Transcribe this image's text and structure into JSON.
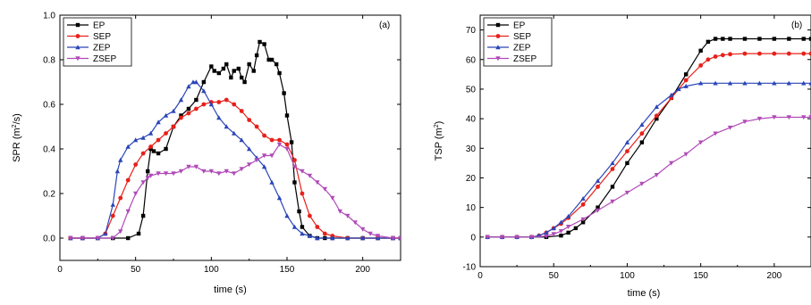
{
  "chart_data": [
    {
      "type": "line",
      "panel_label": "(a)",
      "xlabel": "time (s)",
      "ylabel": "SPR (m²/s)",
      "ylabel_parts": {
        "main": "SPR (m",
        "sup": "2",
        "tail": "/s)"
      },
      "xlim": [
        0,
        225
      ],
      "ylim": [
        -0.1,
        1.0
      ],
      "xticks": [
        0,
        50,
        100,
        150,
        200
      ],
      "yticks": [
        0.0,
        0.2,
        0.4,
        0.6,
        0.8,
        1.0
      ],
      "ytick_labels": [
        "0.0",
        "0.2",
        "0.4",
        "0.6",
        "0.8",
        "1.0"
      ],
      "legend_position": "top-left",
      "series": [
        {
          "name": "EP",
          "color": "#000000",
          "marker": "square",
          "x": [
            7,
            15,
            25,
            35,
            45,
            52,
            55,
            58,
            60,
            62,
            65,
            70,
            75,
            80,
            85,
            90,
            95,
            100,
            102,
            105,
            108,
            110,
            113,
            115,
            118,
            120,
            122,
            125,
            128,
            130,
            132,
            135,
            138,
            140,
            143,
            145,
            148,
            150,
            153,
            155,
            158,
            160,
            165,
            170,
            175,
            180,
            190,
            200,
            210,
            220,
            225
          ],
          "y": [
            0,
            0,
            0,
            0,
            0,
            0.02,
            0.1,
            0.3,
            0.4,
            0.39,
            0.38,
            0.4,
            0.5,
            0.55,
            0.58,
            0.62,
            0.7,
            0.77,
            0.75,
            0.74,
            0.76,
            0.78,
            0.72,
            0.75,
            0.76,
            0.72,
            0.7,
            0.78,
            0.75,
            0.82,
            0.88,
            0.87,
            0.8,
            0.8,
            0.78,
            0.74,
            0.65,
            0.55,
            0.43,
            0.25,
            0.12,
            0.05,
            0.01,
            0,
            0,
            0,
            0,
            0,
            0,
            0,
            0
          ]
        },
        {
          "name": "SEP",
          "color": "#e8201a",
          "marker": "circle",
          "x": [
            7,
            15,
            25,
            30,
            35,
            40,
            45,
            50,
            55,
            60,
            65,
            70,
            75,
            80,
            85,
            90,
            95,
            100,
            105,
            110,
            115,
            120,
            125,
            130,
            135,
            140,
            145,
            150,
            155,
            160,
            165,
            170,
            175,
            180,
            190,
            200,
            210,
            220,
            225
          ],
          "y": [
            0,
            0,
            0,
            0.02,
            0.1,
            0.18,
            0.26,
            0.33,
            0.38,
            0.41,
            0.44,
            0.47,
            0.5,
            0.54,
            0.56,
            0.58,
            0.6,
            0.61,
            0.61,
            0.62,
            0.6,
            0.57,
            0.53,
            0.5,
            0.46,
            0.44,
            0.44,
            0.42,
            0.35,
            0.2,
            0.1,
            0.05,
            0.02,
            0.01,
            0,
            0,
            0,
            0,
            0
          ]
        },
        {
          "name": "ZEP",
          "color": "#2a45b8",
          "marker": "triangle",
          "x": [
            7,
            15,
            25,
            30,
            35,
            38,
            40,
            45,
            50,
            55,
            60,
            65,
            70,
            75,
            80,
            85,
            88,
            90,
            95,
            100,
            105,
            110,
            115,
            120,
            125,
            130,
            135,
            140,
            145,
            150,
            155,
            160,
            165,
            170,
            180,
            190,
            200,
            210,
            220,
            225
          ],
          "y": [
            0,
            0,
            0,
            0.02,
            0.15,
            0.3,
            0.35,
            0.41,
            0.44,
            0.45,
            0.47,
            0.52,
            0.55,
            0.57,
            0.62,
            0.68,
            0.7,
            0.7,
            0.66,
            0.6,
            0.54,
            0.5,
            0.47,
            0.44,
            0.4,
            0.36,
            0.32,
            0.25,
            0.18,
            0.1,
            0.05,
            0.02,
            0.01,
            0,
            0,
            0,
            0,
            0,
            0,
            0
          ]
        },
        {
          "name": "ZSEP",
          "color": "#b04ab8",
          "marker": "triangle-down",
          "x": [
            7,
            15,
            25,
            35,
            40,
            45,
            50,
            55,
            58,
            60,
            65,
            70,
            75,
            80,
            85,
            90,
            95,
            100,
            105,
            110,
            115,
            120,
            125,
            130,
            135,
            140,
            145,
            150,
            155,
            160,
            165,
            170,
            175,
            180,
            185,
            190,
            195,
            200,
            205,
            210,
            220,
            225
          ],
          "y": [
            0,
            0,
            0,
            0,
            0.03,
            0.12,
            0.2,
            0.25,
            0.27,
            0.28,
            0.29,
            0.29,
            0.29,
            0.3,
            0.32,
            0.32,
            0.3,
            0.3,
            0.29,
            0.3,
            0.29,
            0.31,
            0.33,
            0.35,
            0.37,
            0.37,
            0.42,
            0.4,
            0.32,
            0.3,
            0.28,
            0.25,
            0.22,
            0.18,
            0.12,
            0.1,
            0.07,
            0.04,
            0.02,
            0.01,
            0,
            0
          ]
        }
      ]
    },
    {
      "type": "line",
      "panel_label": "(b)",
      "xlabel": "time (s)",
      "ylabel": "TSP (m²)",
      "ylabel_parts": {
        "main": "TSP (m",
        "sup": "2",
        "tail": ")"
      },
      "xlim": [
        0,
        225
      ],
      "ylim": [
        -10,
        75
      ],
      "xticks": [
        0,
        50,
        100,
        150,
        200
      ],
      "yticks": [
        -10,
        0,
        10,
        20,
        30,
        40,
        50,
        60,
        70
      ],
      "ytick_labels": [
        "-10",
        "0",
        "10",
        "20",
        "30",
        "40",
        "50",
        "60",
        "70"
      ],
      "legend_position": "top-left",
      "series": [
        {
          "name": "EP",
          "color": "#000000",
          "marker": "square",
          "x": [
            5,
            15,
            25,
            35,
            45,
            55,
            60,
            65,
            70,
            80,
            90,
            100,
            110,
            120,
            130,
            140,
            150,
            155,
            160,
            165,
            170,
            180,
            190,
            200,
            210,
            220,
            225
          ],
          "y": [
            0,
            0,
            0,
            0,
            0,
            0.5,
            1.5,
            3,
            5,
            10,
            17,
            25,
            32,
            40,
            47,
            55,
            63,
            66,
            67,
            67,
            67,
            67,
            67,
            67,
            67,
            67,
            67
          ]
        },
        {
          "name": "SEP",
          "color": "#e8201a",
          "marker": "circle",
          "x": [
            5,
            15,
            25,
            35,
            40,
            45,
            50,
            55,
            60,
            70,
            80,
            90,
            100,
            110,
            120,
            130,
            140,
            150,
            155,
            160,
            165,
            170,
            180,
            190,
            200,
            210,
            220,
            225
          ],
          "y": [
            0,
            0,
            0,
            0,
            0.5,
            1.5,
            3,
            4.5,
            6.5,
            11,
            17,
            23,
            29,
            35,
            41,
            47,
            53,
            58,
            60,
            61,
            61.5,
            61.8,
            62,
            62,
            62,
            62,
            62,
            62
          ]
        },
        {
          "name": "ZEP",
          "color": "#2a45b8",
          "marker": "triangle",
          "x": [
            5,
            15,
            25,
            35,
            40,
            45,
            50,
            55,
            60,
            70,
            80,
            90,
            100,
            110,
            120,
            130,
            135,
            140,
            150,
            160,
            170,
            180,
            190,
            200,
            210,
            220,
            225
          ],
          "y": [
            0,
            0,
            0,
            0,
            0.5,
            1.5,
            3,
            5,
            7,
            13,
            19,
            25,
            32,
            38,
            44,
            48,
            50,
            51,
            52,
            52,
            52,
            52,
            52,
            52,
            52,
            52,
            52
          ]
        },
        {
          "name": "ZSEP",
          "color": "#b04ab8",
          "marker": "triangle-down",
          "x": [
            5,
            15,
            25,
            35,
            45,
            50,
            55,
            60,
            70,
            80,
            90,
            100,
            110,
            120,
            130,
            140,
            150,
            160,
            170,
            180,
            190,
            200,
            210,
            220,
            225
          ],
          "y": [
            0,
            0,
            0,
            0,
            0.3,
            1,
            2,
            3.5,
            6,
            9,
            12,
            15,
            18,
            21,
            25,
            28,
            32,
            35,
            37,
            39,
            40,
            40.5,
            40.5,
            40.5,
            40.5
          ]
        }
      ]
    }
  ]
}
